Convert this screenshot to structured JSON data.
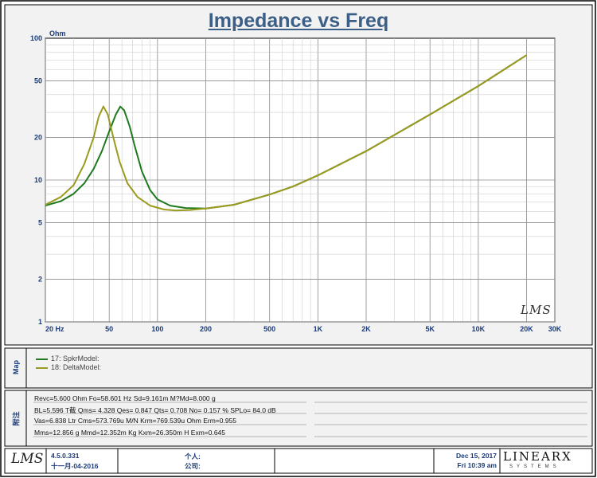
{
  "title": "Impedance vs Freq",
  "chart_data": {
    "type": "line",
    "x_scale": "log",
    "y_scale": "log",
    "xlim": [
      20,
      30000
    ],
    "ylim": [
      1,
      100
    ],
    "ylabel_unit": "Ohm",
    "x_ticks": [
      {
        "v": 20,
        "label": "20  Hz"
      },
      {
        "v": 50,
        "label": "50"
      },
      {
        "v": 100,
        "label": "100"
      },
      {
        "v": 200,
        "label": "200"
      },
      {
        "v": 500,
        "label": "500"
      },
      {
        "v": 1000,
        "label": "1K"
      },
      {
        "v": 2000,
        "label": "2K"
      },
      {
        "v": 5000,
        "label": "5K"
      },
      {
        "v": 10000,
        "label": "10K"
      },
      {
        "v": 20000,
        "label": "20K"
      },
      {
        "v": 30000,
        "label": "30K"
      }
    ],
    "y_ticks": [
      {
        "v": 1,
        "label": "1"
      },
      {
        "v": 2,
        "label": "2"
      },
      {
        "v": 5,
        "label": "5"
      },
      {
        "v": 10,
        "label": "10"
      },
      {
        "v": 20,
        "label": "20"
      },
      {
        "v": 50,
        "label": "50"
      },
      {
        "v": 100,
        "label": "100"
      }
    ],
    "grid": true,
    "watermark": "LMS",
    "series": [
      {
        "name": "17: SpkrModel:",
        "color": "#1f7a1f",
        "points": [
          [
            20,
            6.6
          ],
          [
            25,
            7.1
          ],
          [
            30,
            8.0
          ],
          [
            35,
            9.5
          ],
          [
            40,
            12.0
          ],
          [
            45,
            16.0
          ],
          [
            50,
            22.0
          ],
          [
            55,
            29.0
          ],
          [
            58.6,
            33.0
          ],
          [
            62,
            31.0
          ],
          [
            67,
            24.0
          ],
          [
            72,
            17.5
          ],
          [
            80,
            11.5
          ],
          [
            90,
            8.5
          ],
          [
            100,
            7.3
          ],
          [
            120,
            6.6
          ],
          [
            150,
            6.35
          ],
          [
            200,
            6.3
          ],
          [
            300,
            6.7
          ],
          [
            500,
            7.9
          ],
          [
            700,
            9.0
          ],
          [
            1000,
            10.8
          ],
          [
            2000,
            16.0
          ],
          [
            5000,
            29.0
          ],
          [
            10000,
            46.0
          ],
          [
            20000,
            76.0
          ]
        ]
      },
      {
        "name": "18: DeltaModel:",
        "color": "#9a9a1e",
        "points": [
          [
            20,
            6.7
          ],
          [
            25,
            7.6
          ],
          [
            30,
            9.2
          ],
          [
            35,
            13.0
          ],
          [
            40,
            20.0
          ],
          [
            43,
            28.0
          ],
          [
            46,
            33.0
          ],
          [
            49,
            29.0
          ],
          [
            53,
            20.0
          ],
          [
            58,
            13.5
          ],
          [
            65,
            9.5
          ],
          [
            75,
            7.6
          ],
          [
            90,
            6.6
          ],
          [
            110,
            6.2
          ],
          [
            130,
            6.1
          ],
          [
            160,
            6.15
          ],
          [
            200,
            6.3
          ],
          [
            300,
            6.7
          ],
          [
            500,
            7.9
          ],
          [
            700,
            9.0
          ],
          [
            1000,
            10.8
          ],
          [
            2000,
            16.0
          ],
          [
            5000,
            29.0
          ],
          [
            10000,
            46.0
          ],
          [
            20000,
            76.0
          ]
        ]
      }
    ]
  },
  "map_label": "Map",
  "notes_label": "附注",
  "params": [
    "Revc=5.600 Ohm  Fo=58.601 Hz  Sd=9.161m M?Md=8.000 g",
    "BL=5.596 T截  Qms= 4.328  Qes= 0.847  Qts= 0.708  No= 0.157 %  SPLo= 84.0 dB",
    "Vas=6.838 Ltr  Cms=573.769u M/N  Krm=769.539u Ohm  Erm=0.955",
    "Mms=12.856  g  Mmd=12.352m Kg  Kxm=26.350m H  Exm=0.645"
  ],
  "footer": {
    "logo": "LMS",
    "version": "4.5.0.331",
    "build_date": "十一月-04-2016",
    "person_label": "个人:",
    "company_label": "公司:",
    "date": "Dec 15, 2017",
    "time": "Fri 10:39 am",
    "brand": "LINEARX",
    "brand_sub": "SYSTEMS"
  }
}
